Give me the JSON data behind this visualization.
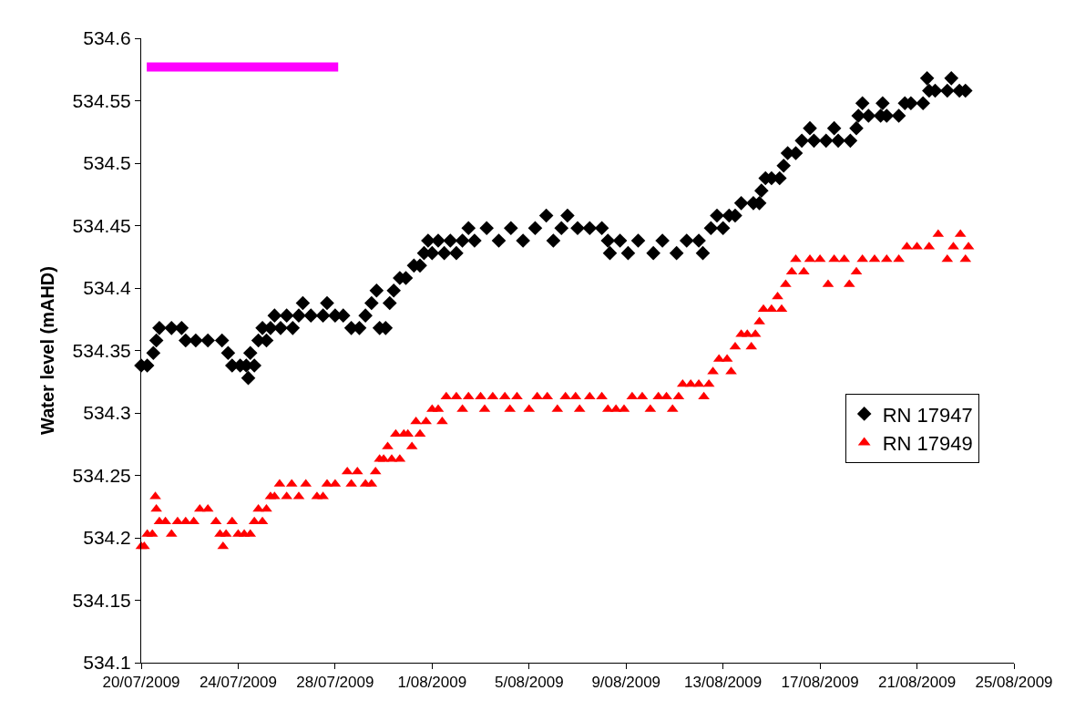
{
  "chart_data": {
    "type": "scatter",
    "ylabel": "Water level (mAHD)",
    "legend": "right",
    "xlim": [
      "2009-07-20",
      "2009-08-25"
    ],
    "xticks": [
      {
        "value": "2009-07-20",
        "label": "20/07/2009"
      },
      {
        "value": "2009-07-24",
        "label": "24/07/2009"
      },
      {
        "value": "2009-07-28",
        "label": "28/07/2009"
      },
      {
        "value": "2009-08-01",
        "label": "1/08/2009"
      },
      {
        "value": "2009-08-05",
        "label": "5/08/2009"
      },
      {
        "value": "2009-08-09",
        "label": "9/08/2009"
      },
      {
        "value": "2009-08-13",
        "label": "13/08/2009"
      },
      {
        "value": "2009-08-17",
        "label": "17/08/2009"
      },
      {
        "value": "2009-08-21",
        "label": "21/08/2009"
      },
      {
        "value": "2009-08-25",
        "label": "25/08/2009"
      }
    ],
    "ylim": [
      534.1,
      534.6
    ],
    "yticks": [
      534.1,
      534.15,
      534.2,
      534.25,
      534.3,
      534.35,
      534.4,
      534.45,
      534.5,
      534.55,
      534.6
    ],
    "series": [
      {
        "name": "RN 17947",
        "color": "#000000",
        "marker": "diamond",
        "x": [
          "2009-07-20T00:00",
          "2009-07-20T06:00",
          "2009-07-20T12:00",
          "2009-07-20T15:00",
          "2009-07-20T18:00",
          "2009-07-21T06:00",
          "2009-07-21T16:00",
          "2009-07-21T20:00",
          "2009-07-22T06:00",
          "2009-07-22T18:00",
          "2009-07-23T08:00",
          "2009-07-23T14:00",
          "2009-07-23T18:00",
          "2009-07-24T02:00",
          "2009-07-24T08:00",
          "2009-07-24T10:00",
          "2009-07-24T12:00",
          "2009-07-24T16:00",
          "2009-07-24T20:00",
          "2009-07-25T00:00",
          "2009-07-25T04:00",
          "2009-07-25T08:00",
          "2009-07-25T12:00",
          "2009-07-25T18:00",
          "2009-07-26T00:00",
          "2009-07-26T06:00",
          "2009-07-26T12:00",
          "2009-07-26T16:00",
          "2009-07-27T00:00",
          "2009-07-27T12:00",
          "2009-07-27T16:00",
          "2009-07-28T00:00",
          "2009-07-28T08:00",
          "2009-07-28T16:00",
          "2009-07-29T00:00",
          "2009-07-29T06:00",
          "2009-07-29T12:00",
          "2009-07-29T17:00",
          "2009-07-29T20:00",
          "2009-07-30T02:00",
          "2009-07-30T06:00",
          "2009-07-30T10:00",
          "2009-07-30T16:00",
          "2009-07-30T22:00",
          "2009-07-31T06:00",
          "2009-07-31T12:00",
          "2009-07-31T16:00",
          "2009-07-31T20:00",
          "2009-08-01T00:00",
          "2009-08-01T06:00",
          "2009-08-01T12:00",
          "2009-08-01T18:00",
          "2009-08-02T00:00",
          "2009-08-02T06:00",
          "2009-08-02T12:00",
          "2009-08-02T18:00",
          "2009-08-03T06:00",
          "2009-08-03T18:00",
          "2009-08-04T06:00",
          "2009-08-04T18:00",
          "2009-08-05T06:00",
          "2009-08-05T17:00",
          "2009-08-06T00:00",
          "2009-08-06T08:00",
          "2009-08-06T14:00",
          "2009-08-07T00:00",
          "2009-08-07T12:00",
          "2009-08-08T00:00",
          "2009-08-08T06:00",
          "2009-08-08T08:00",
          "2009-08-08T18:00",
          "2009-08-09T02:00",
          "2009-08-09T12:00",
          "2009-08-10T03:00",
          "2009-08-10T12:00",
          "2009-08-11T02:00",
          "2009-08-11T12:00",
          "2009-08-12T00:00",
          "2009-08-12T04:00",
          "2009-08-12T12:00",
          "2009-08-12T18:00",
          "2009-08-13T00:00",
          "2009-08-13T06:00",
          "2009-08-13T12:00",
          "2009-08-13T18:00",
          "2009-08-14T06:00",
          "2009-08-14T12:00",
          "2009-08-14T14:00",
          "2009-08-14T18:00",
          "2009-08-15T00:00",
          "2009-08-15T08:00",
          "2009-08-15T12:00",
          "2009-08-15T16:00",
          "2009-08-16T00:00",
          "2009-08-16T06:00",
          "2009-08-16T14:00",
          "2009-08-16T18:00",
          "2009-08-17T06:00",
          "2009-08-17T14:00",
          "2009-08-17T18:00",
          "2009-08-18T06:00",
          "2009-08-18T12:00",
          "2009-08-18T14:00",
          "2009-08-18T18:00",
          "2009-08-19T00:00",
          "2009-08-19T12:00",
          "2009-08-19T14:00",
          "2009-08-19T18:00",
          "2009-08-20T06:00",
          "2009-08-20T12:00",
          "2009-08-20T18:00",
          "2009-08-21T06:00",
          "2009-08-21T10:00",
          "2009-08-21T12:00",
          "2009-08-21T18:00",
          "2009-08-22T06:00",
          "2009-08-22T10:00",
          "2009-08-22T18:00",
          "2009-08-23T00:00"
        ],
        "values": [
          534.338,
          534.338,
          534.348,
          534.358,
          534.368,
          534.368,
          534.368,
          534.358,
          534.358,
          534.358,
          534.358,
          534.348,
          534.338,
          534.338,
          534.338,
          534.328,
          534.348,
          534.338,
          534.358,
          534.368,
          534.358,
          534.368,
          534.378,
          534.368,
          534.378,
          534.368,
          534.378,
          534.388,
          534.378,
          534.378,
          534.388,
          534.378,
          534.378,
          534.368,
          534.368,
          534.378,
          534.388,
          534.398,
          534.368,
          534.368,
          534.388,
          534.398,
          534.408,
          534.408,
          534.418,
          534.418,
          534.428,
          534.438,
          534.428,
          534.438,
          534.428,
          534.438,
          534.428,
          534.438,
          534.448,
          534.438,
          534.448,
          534.438,
          534.448,
          534.438,
          534.448,
          534.458,
          534.438,
          534.448,
          534.458,
          534.448,
          534.448,
          534.448,
          534.438,
          534.428,
          534.438,
          534.428,
          534.438,
          534.428,
          534.438,
          534.428,
          534.438,
          534.438,
          534.428,
          534.448,
          534.458,
          534.448,
          534.458,
          534.458,
          534.468,
          534.468,
          534.468,
          534.478,
          534.488,
          534.488,
          534.488,
          534.498,
          534.508,
          534.508,
          534.518,
          534.528,
          534.518,
          534.518,
          534.528,
          534.518,
          534.518,
          534.528,
          534.538,
          534.548,
          534.538,
          534.538,
          534.548,
          534.538,
          534.538,
          534.548,
          534.548,
          534.548,
          534.568,
          534.558,
          534.558,
          534.558,
          534.568,
          534.558,
          534.558
        ]
      },
      {
        "name": "RN 17949",
        "color": "#ff0000",
        "marker": "triangle",
        "x": [
          "2009-07-20T00:00",
          "2009-07-20T03:00",
          "2009-07-20T06:00",
          "2009-07-20T11:00",
          "2009-07-20T14:00",
          "2009-07-20T15:00",
          "2009-07-20T18:00",
          "2009-07-21T00:00",
          "2009-07-21T06:00",
          "2009-07-21T12:00",
          "2009-07-21T20:00",
          "2009-07-22T04:00",
          "2009-07-22T10:00",
          "2009-07-22T18:00",
          "2009-07-23T02:00",
          "2009-07-23T06:00",
          "2009-07-23T09:00",
          "2009-07-23T12:00",
          "2009-07-23T18:00",
          "2009-07-24T00:00",
          "2009-07-24T06:00",
          "2009-07-24T12:00",
          "2009-07-24T16:00",
          "2009-07-24T20:00",
          "2009-07-25T00:00",
          "2009-07-25T04:00",
          "2009-07-25T08:00",
          "2009-07-25T12:00",
          "2009-07-25T17:00",
          "2009-07-26T00:00",
          "2009-07-26T05:00",
          "2009-07-26T12:00",
          "2009-07-26T19:00",
          "2009-07-27T06:00",
          "2009-07-27T12:00",
          "2009-07-27T16:00",
          "2009-07-28T00:00",
          "2009-07-28T12:00",
          "2009-07-28T16:00",
          "2009-07-28T22:00",
          "2009-07-29T06:00",
          "2009-07-29T12:00",
          "2009-07-29T16:00",
          "2009-07-29T20:00",
          "2009-07-30T00:00",
          "2009-07-30T04:00",
          "2009-07-30T08:00",
          "2009-07-30T12:00",
          "2009-07-30T16:00",
          "2009-07-30T20:00",
          "2009-07-31T00:00",
          "2009-07-31T04:00",
          "2009-07-31T08:00",
          "2009-07-31T12:00",
          "2009-07-31T18:00",
          "2009-08-01T00:00",
          "2009-08-01T06:00",
          "2009-08-01T10:00",
          "2009-08-01T14:00",
          "2009-08-02T00:00",
          "2009-08-02T06:00",
          "2009-08-02T12:00",
          "2009-08-03T00:00",
          "2009-08-03T04:00",
          "2009-08-03T12:00",
          "2009-08-04T00:00",
          "2009-08-04T05:00",
          "2009-08-04T12:00",
          "2009-08-05T00:00",
          "2009-08-05T08:00",
          "2009-08-05T18:00",
          "2009-08-06T04:00",
          "2009-08-06T12:00",
          "2009-08-06T22:00",
          "2009-08-07T02:00",
          "2009-08-07T12:00",
          "2009-08-08T00:00",
          "2009-08-08T06:00",
          "2009-08-08T14:00",
          "2009-08-08T22:00",
          "2009-08-09T06:00",
          "2009-08-09T16:00",
          "2009-08-10T00:00",
          "2009-08-10T08:00",
          "2009-08-10T16:00",
          "2009-08-10T22:00",
          "2009-08-11T04:00",
          "2009-08-11T08:00",
          "2009-08-11T16:00",
          "2009-08-12T00:00",
          "2009-08-12T05:00",
          "2009-08-12T10:00",
          "2009-08-12T14:00",
          "2009-08-12T20:00",
          "2009-08-13T04:00",
          "2009-08-13T08:00",
          "2009-08-13T12:00",
          "2009-08-13T18:00",
          "2009-08-14T00:00",
          "2009-08-14T04:00",
          "2009-08-14T08:00",
          "2009-08-14T12:00",
          "2009-08-14T16:00",
          "2009-08-15T00:00",
          "2009-08-15T06:00",
          "2009-08-15T10:00",
          "2009-08-15T14:00",
          "2009-08-15T20:00",
          "2009-08-16T00:00",
          "2009-08-16T08:00",
          "2009-08-16T14:00",
          "2009-08-17T00:00",
          "2009-08-17T08:00",
          "2009-08-17T14:00",
          "2009-08-18T00:00",
          "2009-08-18T05:00",
          "2009-08-18T12:00",
          "2009-08-18T18:00",
          "2009-08-19T06:00",
          "2009-08-19T18:00",
          "2009-08-20T06:00",
          "2009-08-20T14:00",
          "2009-08-21T00:00",
          "2009-08-21T12:00",
          "2009-08-21T21:00",
          "2009-08-22T06:00",
          "2009-08-22T12:00",
          "2009-08-22T19:00",
          "2009-08-23T00:00",
          "2009-08-23T03:00"
        ],
        "values": [
          534.193,
          534.193,
          534.203,
          534.203,
          534.233,
          534.223,
          534.213,
          534.213,
          534.203,
          534.213,
          534.213,
          534.213,
          534.223,
          534.223,
          534.213,
          534.203,
          534.193,
          534.203,
          534.213,
          534.203,
          534.203,
          534.203,
          534.213,
          534.223,
          534.213,
          534.223,
          534.233,
          534.233,
          534.243,
          534.233,
          534.243,
          534.233,
          534.243,
          534.233,
          534.233,
          534.243,
          534.243,
          534.253,
          534.243,
          534.253,
          534.243,
          534.243,
          534.253,
          534.263,
          534.263,
          534.273,
          534.263,
          534.283,
          534.263,
          534.283,
          534.283,
          534.273,
          534.293,
          534.283,
          534.293,
          534.303,
          534.303,
          534.293,
          534.313,
          534.313,
          534.303,
          534.313,
          534.313,
          534.303,
          534.313,
          534.313,
          534.303,
          534.313,
          534.303,
          534.313,
          534.313,
          534.303,
          534.313,
          534.313,
          534.303,
          534.313,
          534.313,
          534.303,
          534.303,
          534.303,
          534.313,
          534.313,
          534.303,
          534.313,
          534.313,
          534.303,
          534.313,
          534.323,
          534.323,
          534.323,
          534.313,
          534.323,
          534.333,
          534.343,
          534.343,
          534.333,
          534.353,
          534.363,
          534.363,
          534.353,
          534.363,
          534.373,
          534.383,
          534.383,
          534.393,
          534.383,
          534.403,
          534.413,
          534.423,
          534.413,
          534.423,
          534.423,
          534.403,
          534.423,
          534.423,
          534.403,
          534.413,
          534.423,
          534.423,
          534.423,
          534.423,
          534.433,
          534.433,
          534.433,
          534.443,
          534.423,
          534.433,
          534.443,
          534.423,
          534.433
        ]
      },
      {
        "type": "line",
        "color": "#ff00ff",
        "marker": "none",
        "x": [
          "2009-07-20T05:30",
          "2009-07-28T03:00"
        ],
        "values": [
          534.577,
          534.577
        ]
      }
    ]
  }
}
